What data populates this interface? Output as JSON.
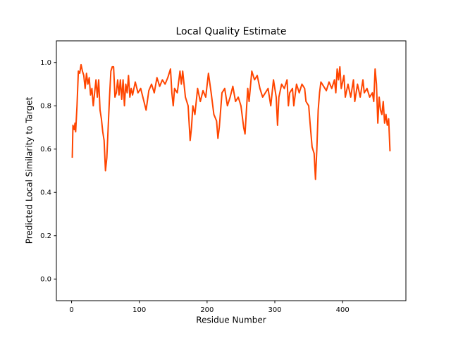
{
  "chart_data": {
    "type": "line",
    "title": "Local Quality Estimate",
    "xlabel": "Residue Number",
    "ylabel": "Predicted Local Similarity to Target",
    "xlim": [
      -22.45,
      493.45
    ],
    "ylim": [
      -0.1,
      1.1
    ],
    "xticks": [
      0,
      100,
      200,
      300,
      400
    ],
    "yticks": [
      {
        "value": 0,
        "label": "0.0"
      },
      {
        "value": 0.2,
        "label": "0.2"
      },
      {
        "value": 0.4,
        "label": "0.4"
      },
      {
        "value": 0.6,
        "label": "0.6"
      },
      {
        "value": 0.8,
        "label": "0.8"
      },
      {
        "value": 1,
        "label": "1.0"
      }
    ],
    "grid": false,
    "x": [
      1,
      2,
      4,
      5,
      6,
      8,
      10,
      12,
      14,
      16,
      18,
      20,
      22,
      24,
      26,
      28,
      30,
      32,
      34,
      36,
      38,
      40,
      42,
      44,
      46,
      48,
      50,
      52,
      54,
      56,
      58,
      60,
      62,
      64,
      66,
      68,
      70,
      72,
      74,
      76,
      78,
      80,
      82,
      84,
      86,
      88,
      90,
      94,
      98,
      102,
      106,
      110,
      114,
      118,
      122,
      126,
      130,
      134,
      138,
      142,
      146,
      148,
      150,
      152,
      156,
      160,
      162,
      164,
      168,
      172,
      175,
      177,
      179,
      182,
      186,
      190,
      194,
      198,
      202,
      206,
      210,
      214,
      216,
      218,
      222,
      226,
      230,
      234,
      238,
      242,
      246,
      250,
      254,
      256,
      260,
      262,
      266,
      270,
      274,
      278,
      282,
      286,
      290,
      294,
      298,
      302,
      304,
      306,
      310,
      314,
      318,
      320,
      322,
      326,
      328,
      332,
      336,
      340,
      344,
      346,
      350,
      352,
      355,
      358,
      360,
      362,
      364,
      366,
      368,
      372,
      376,
      380,
      384,
      388,
      390,
      392,
      394,
      396,
      398,
      402,
      404,
      408,
      412,
      416,
      418,
      422,
      426,
      430,
      432,
      436,
      440,
      444,
      446,
      448,
      450,
      452,
      454,
      456,
      458,
      460,
      462,
      464,
      466,
      468,
      470
    ],
    "series": [
      {
        "color": "#ff4500",
        "values": [
          0.56,
          0.71,
          0.69,
          0.72,
          0.68,
          0.8,
          0.96,
          0.95,
          0.99,
          0.96,
          0.94,
          0.88,
          0.95,
          0.9,
          0.93,
          0.85,
          0.88,
          0.8,
          0.86,
          0.92,
          0.84,
          0.92,
          0.78,
          0.74,
          0.68,
          0.64,
          0.5,
          0.56,
          0.7,
          0.84,
          0.96,
          0.98,
          0.98,
          0.84,
          0.86,
          0.92,
          0.85,
          0.92,
          0.83,
          0.92,
          0.8,
          0.9,
          0.86,
          0.94,
          0.84,
          0.88,
          0.85,
          0.91,
          0.86,
          0.88,
          0.83,
          0.78,
          0.87,
          0.9,
          0.86,
          0.93,
          0.89,
          0.92,
          0.9,
          0.93,
          0.97,
          0.86,
          0.8,
          0.88,
          0.86,
          0.96,
          0.9,
          0.96,
          0.84,
          0.8,
          0.64,
          0.7,
          0.8,
          0.76,
          0.88,
          0.82,
          0.87,
          0.84,
          0.95,
          0.86,
          0.76,
          0.73,
          0.65,
          0.7,
          0.86,
          0.88,
          0.8,
          0.84,
          0.89,
          0.82,
          0.84,
          0.8,
          0.7,
          0.67,
          0.88,
          0.82,
          0.96,
          0.92,
          0.94,
          0.88,
          0.84,
          0.86,
          0.88,
          0.8,
          0.92,
          0.84,
          0.71,
          0.84,
          0.9,
          0.88,
          0.92,
          0.8,
          0.86,
          0.88,
          0.8,
          0.9,
          0.86,
          0.9,
          0.88,
          0.82,
          0.8,
          0.72,
          0.61,
          0.58,
          0.46,
          0.6,
          0.78,
          0.86,
          0.91,
          0.89,
          0.87,
          0.91,
          0.88,
          0.92,
          0.86,
          0.97,
          0.92,
          0.98,
          0.88,
          0.94,
          0.84,
          0.9,
          0.84,
          0.92,
          0.82,
          0.9,
          0.84,
          0.92,
          0.86,
          0.88,
          0.84,
          0.86,
          0.82,
          0.97,
          0.9,
          0.72,
          0.84,
          0.78,
          0.76,
          0.82,
          0.72,
          0.76,
          0.71,
          0.74,
          0.59
        ]
      }
    ]
  }
}
